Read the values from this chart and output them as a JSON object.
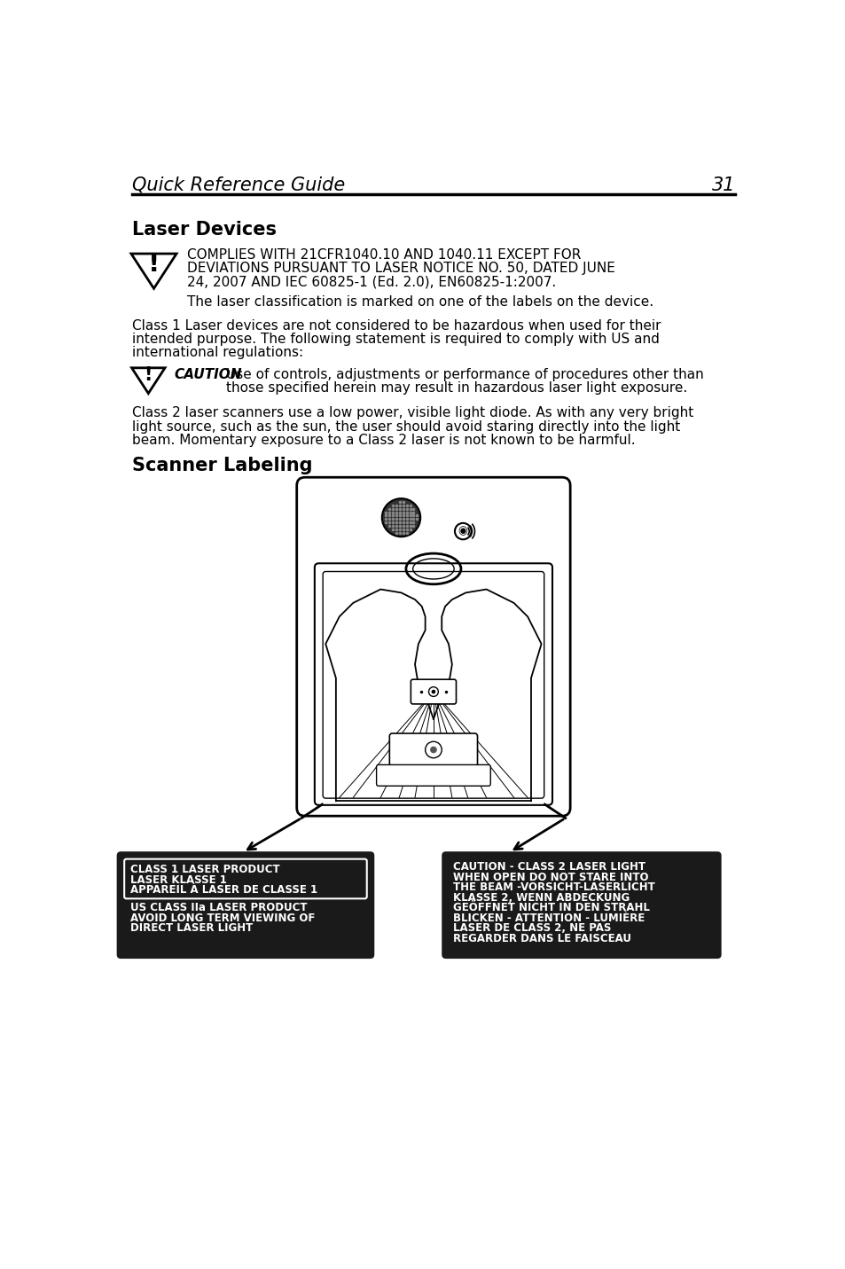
{
  "bg_color": "#ffffff",
  "header_title": "Quick Reference Guide",
  "header_page": "31",
  "section1_title": "Laser Devices",
  "warning_text1_line1": "COMPLIES WITH 21CFR1040.10 AND 1040.11 EXCEPT FOR",
  "warning_text1_line2": "DEVIATIONS PURSUANT TO LASER NOTICE NO. 50, DATED JUNE",
  "warning_text1_line3": "24, 2007 AND IEC 60825-1 (Ed. 2.0), EN60825-1:2007.",
  "warning_text1_sub": "The laser classification is marked on one of the labels on the device.",
  "body_text1_l1": "Class 1 Laser devices are not considered to be hazardous when used for their",
  "body_text1_l2": "intended purpose. The following statement is required to comply with US and",
  "body_text1_l3": "international regulations:",
  "caution_label": "CAUTION",
  "caution_text_l1": "Use of controls, adjustments or performance of procedures other than",
  "caution_text_l2": "those specified herein may result in hazardous laser light exposure.",
  "body_text2_l1": "Class 2 laser scanners use a low power, visible light diode. As with any very bright",
  "body_text2_l2": "light source, such as the sun, the user should avoid staring directly into the light",
  "body_text2_l3": "beam. Momentary exposure to a Class 2 laser is not known to be harmful.",
  "section2_title": "Scanner Labeling",
  "label_box1_line1": "CLASS 1 LASER PRODUCT",
  "label_box1_line2": "LASER KLASSE 1",
  "label_box1_line3": "APPAREIL À LASER DE CLASSE 1",
  "label_box2_line1": "US CLASS IIa LASER PRODUCT",
  "label_box2_line2": "AVOID LONG TERM VIEWING OF",
  "label_box2_line3": "DIRECT LASER LIGHT",
  "label_box3_line1": "CAUTION - CLASS 2 LASER LIGHT",
  "label_box3_line2": "WHEN OPEN DO NOT STARE INTO",
  "label_box3_line3": "THE BEAM -VORSICHT-LASERLICHT",
  "label_box3_line4": "KLASSE 2, WENN ABDECKUNG",
  "label_box3_line5": "GEÖFFNET NICHT IN DEN STRAHL",
  "label_box3_line6": "BLICKEN - ATTENTION - LUMIÈRE",
  "label_box3_line7": "LASER DE CLASS 2, NE PAS",
  "label_box3_line8": "REGARDER DANS LE FAISCEAU",
  "label_dark_bg": "#1a1a1a",
  "label_text_color": "#ffffff"
}
